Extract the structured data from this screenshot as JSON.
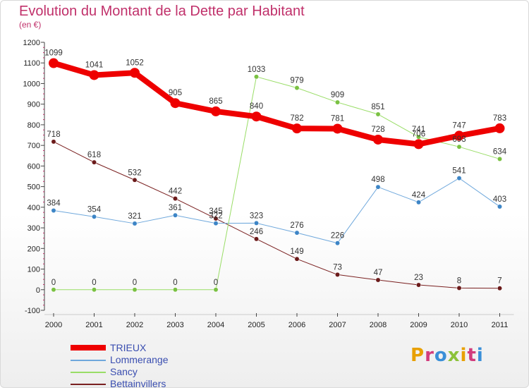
{
  "title": "Evolution du Montant de la Dette par Habitant",
  "subtitle": "(en €)",
  "logo_text": "Proxiti",
  "logo_colors": [
    "#e8a000",
    "#d23c7c",
    "#3a8fd8",
    "#8cc23a",
    "#e8a000",
    "#d23c7c",
    "#3a8fd8"
  ],
  "chart_data": {
    "type": "line",
    "title": "Evolution du Montant de la Dette par Habitant",
    "subtitle": "(en €)",
    "x": [
      "2000",
      "2001",
      "2002",
      "2003",
      "2004",
      "2005",
      "2006",
      "2007",
      "2008",
      "2009",
      "2010",
      "2011"
    ],
    "ylim": [
      -100,
      1200
    ],
    "yticks": [
      -100,
      0,
      100,
      200,
      300,
      400,
      500,
      600,
      700,
      800,
      900,
      1000,
      1100,
      1200
    ],
    "grid": false,
    "legend_position": "bottom-left",
    "series": [
      {
        "name": "TRIEUX",
        "color": "#ee0000",
        "point_color": "#ee0000",
        "label_color": "#333333",
        "width": 8,
        "values": [
          1099,
          1041,
          1052,
          905,
          865,
          840,
          782,
          781,
          728,
          706,
          747,
          783
        ]
      },
      {
        "name": "Lommerange",
        "color": "#6fa8dc",
        "point_color": "#3d85c6",
        "label_color": "#333333",
        "width": 1,
        "values": [
          384,
          354,
          321,
          361,
          322,
          323,
          276,
          226,
          498,
          424,
          541,
          403
        ]
      },
      {
        "name": "Sancy",
        "color": "#99dd66",
        "point_color": "#7ac142",
        "label_color": "#333333",
        "width": 1,
        "values": [
          0,
          0,
          0,
          0,
          0,
          1033,
          979,
          909,
          851,
          741,
          693,
          634
        ]
      },
      {
        "name": "Bettainvillers",
        "color": "#7a2020",
        "point_color": "#6b1a1a",
        "label_color": "#333333",
        "width": 1,
        "values": [
          718,
          618,
          532,
          442,
          345,
          246,
          149,
          73,
          47,
          23,
          8,
          7
        ]
      }
    ]
  }
}
